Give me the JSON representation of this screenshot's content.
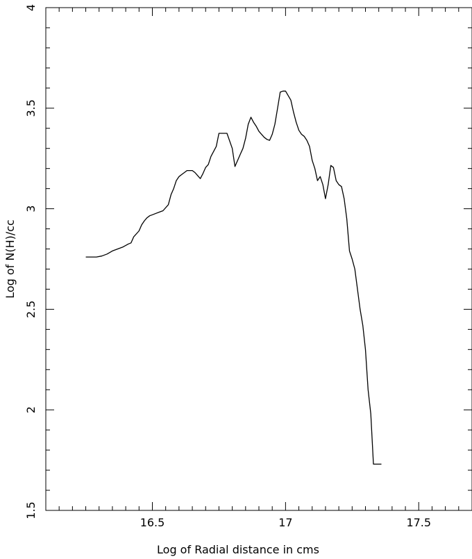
{
  "chart_data": {
    "type": "line",
    "title": "",
    "xlabel": "Log of Radial distance in cms",
    "ylabel": "Log of N(H)/cc",
    "xlim": [
      16.1,
      17.7
    ],
    "ylim": [
      1.5,
      4.0
    ],
    "xticks": [
      {
        "value": 16.5,
        "label": "16.5"
      },
      {
        "value": 17.0,
        "label": "17"
      },
      {
        "value": 17.5,
        "label": "17.5"
      }
    ],
    "yticks": [
      {
        "value": 1.5,
        "label": "1.5"
      },
      {
        "value": 2.0,
        "label": "2"
      },
      {
        "value": 2.5,
        "label": "2.5"
      },
      {
        "value": 3.0,
        "label": "3"
      },
      {
        "value": 3.5,
        "label": "3.5"
      },
      {
        "value": 4.0,
        "label": "4"
      }
    ],
    "grid": false,
    "line_color": "#000000",
    "series": [
      {
        "x": [
          16.25,
          16.29,
          16.31,
          16.33,
          16.35,
          16.37,
          16.39,
          16.41,
          16.42,
          16.43,
          16.45,
          16.46,
          16.47,
          16.48,
          16.49,
          16.5,
          16.51,
          16.53,
          16.54,
          16.56,
          16.57,
          16.58,
          16.59,
          16.6,
          16.61,
          16.62,
          16.63,
          16.65,
          16.66,
          16.67,
          16.68,
          16.69,
          16.7,
          16.71,
          16.72,
          16.74,
          16.75,
          16.76,
          16.77,
          16.78,
          16.8,
          16.81,
          16.83,
          16.84,
          16.85,
          16.86,
          16.87,
          16.88,
          16.89,
          16.9,
          16.91,
          16.92,
          16.93,
          16.94,
          16.95,
          16.96,
          16.97,
          16.98,
          16.99,
          17.0,
          17.02,
          17.03,
          17.04,
          17.05,
          17.06,
          17.07,
          17.08,
          17.09,
          17.1,
          17.11,
          17.12,
          17.13,
          17.14,
          17.15,
          17.16,
          17.17,
          17.18,
          17.19,
          17.2,
          17.21,
          17.22,
          17.23,
          17.24,
          17.25,
          17.26,
          17.27,
          17.28,
          17.29,
          17.3,
          17.31,
          17.32,
          17.33,
          17.34,
          17.35,
          17.36
        ],
        "y": [
          2.76,
          2.76,
          2.765,
          2.775,
          2.79,
          2.8,
          2.81,
          2.825,
          2.83,
          2.86,
          2.89,
          2.92,
          2.94,
          2.955,
          2.965,
          2.97,
          2.975,
          2.985,
          2.99,
          3.02,
          3.07,
          3.1,
          3.14,
          3.16,
          3.17,
          3.18,
          3.19,
          3.19,
          3.18,
          3.165,
          3.15,
          3.175,
          3.205,
          3.22,
          3.26,
          3.31,
          3.375,
          3.375,
          3.375,
          3.375,
          3.3,
          3.21,
          3.27,
          3.3,
          3.35,
          3.42,
          3.455,
          3.43,
          3.41,
          3.385,
          3.37,
          3.355,
          3.345,
          3.34,
          3.37,
          3.42,
          3.5,
          3.58,
          3.585,
          3.585,
          3.54,
          3.48,
          3.43,
          3.39,
          3.37,
          3.36,
          3.34,
          3.31,
          3.24,
          3.2,
          3.14,
          3.16,
          3.12,
          3.05,
          3.12,
          3.215,
          3.205,
          3.14,
          3.12,
          3.11,
          3.05,
          2.95,
          2.79,
          2.75,
          2.7,
          2.6,
          2.5,
          2.42,
          2.3,
          2.1,
          1.98,
          1.73,
          1.73,
          1.73,
          1.73
        ]
      }
    ]
  }
}
